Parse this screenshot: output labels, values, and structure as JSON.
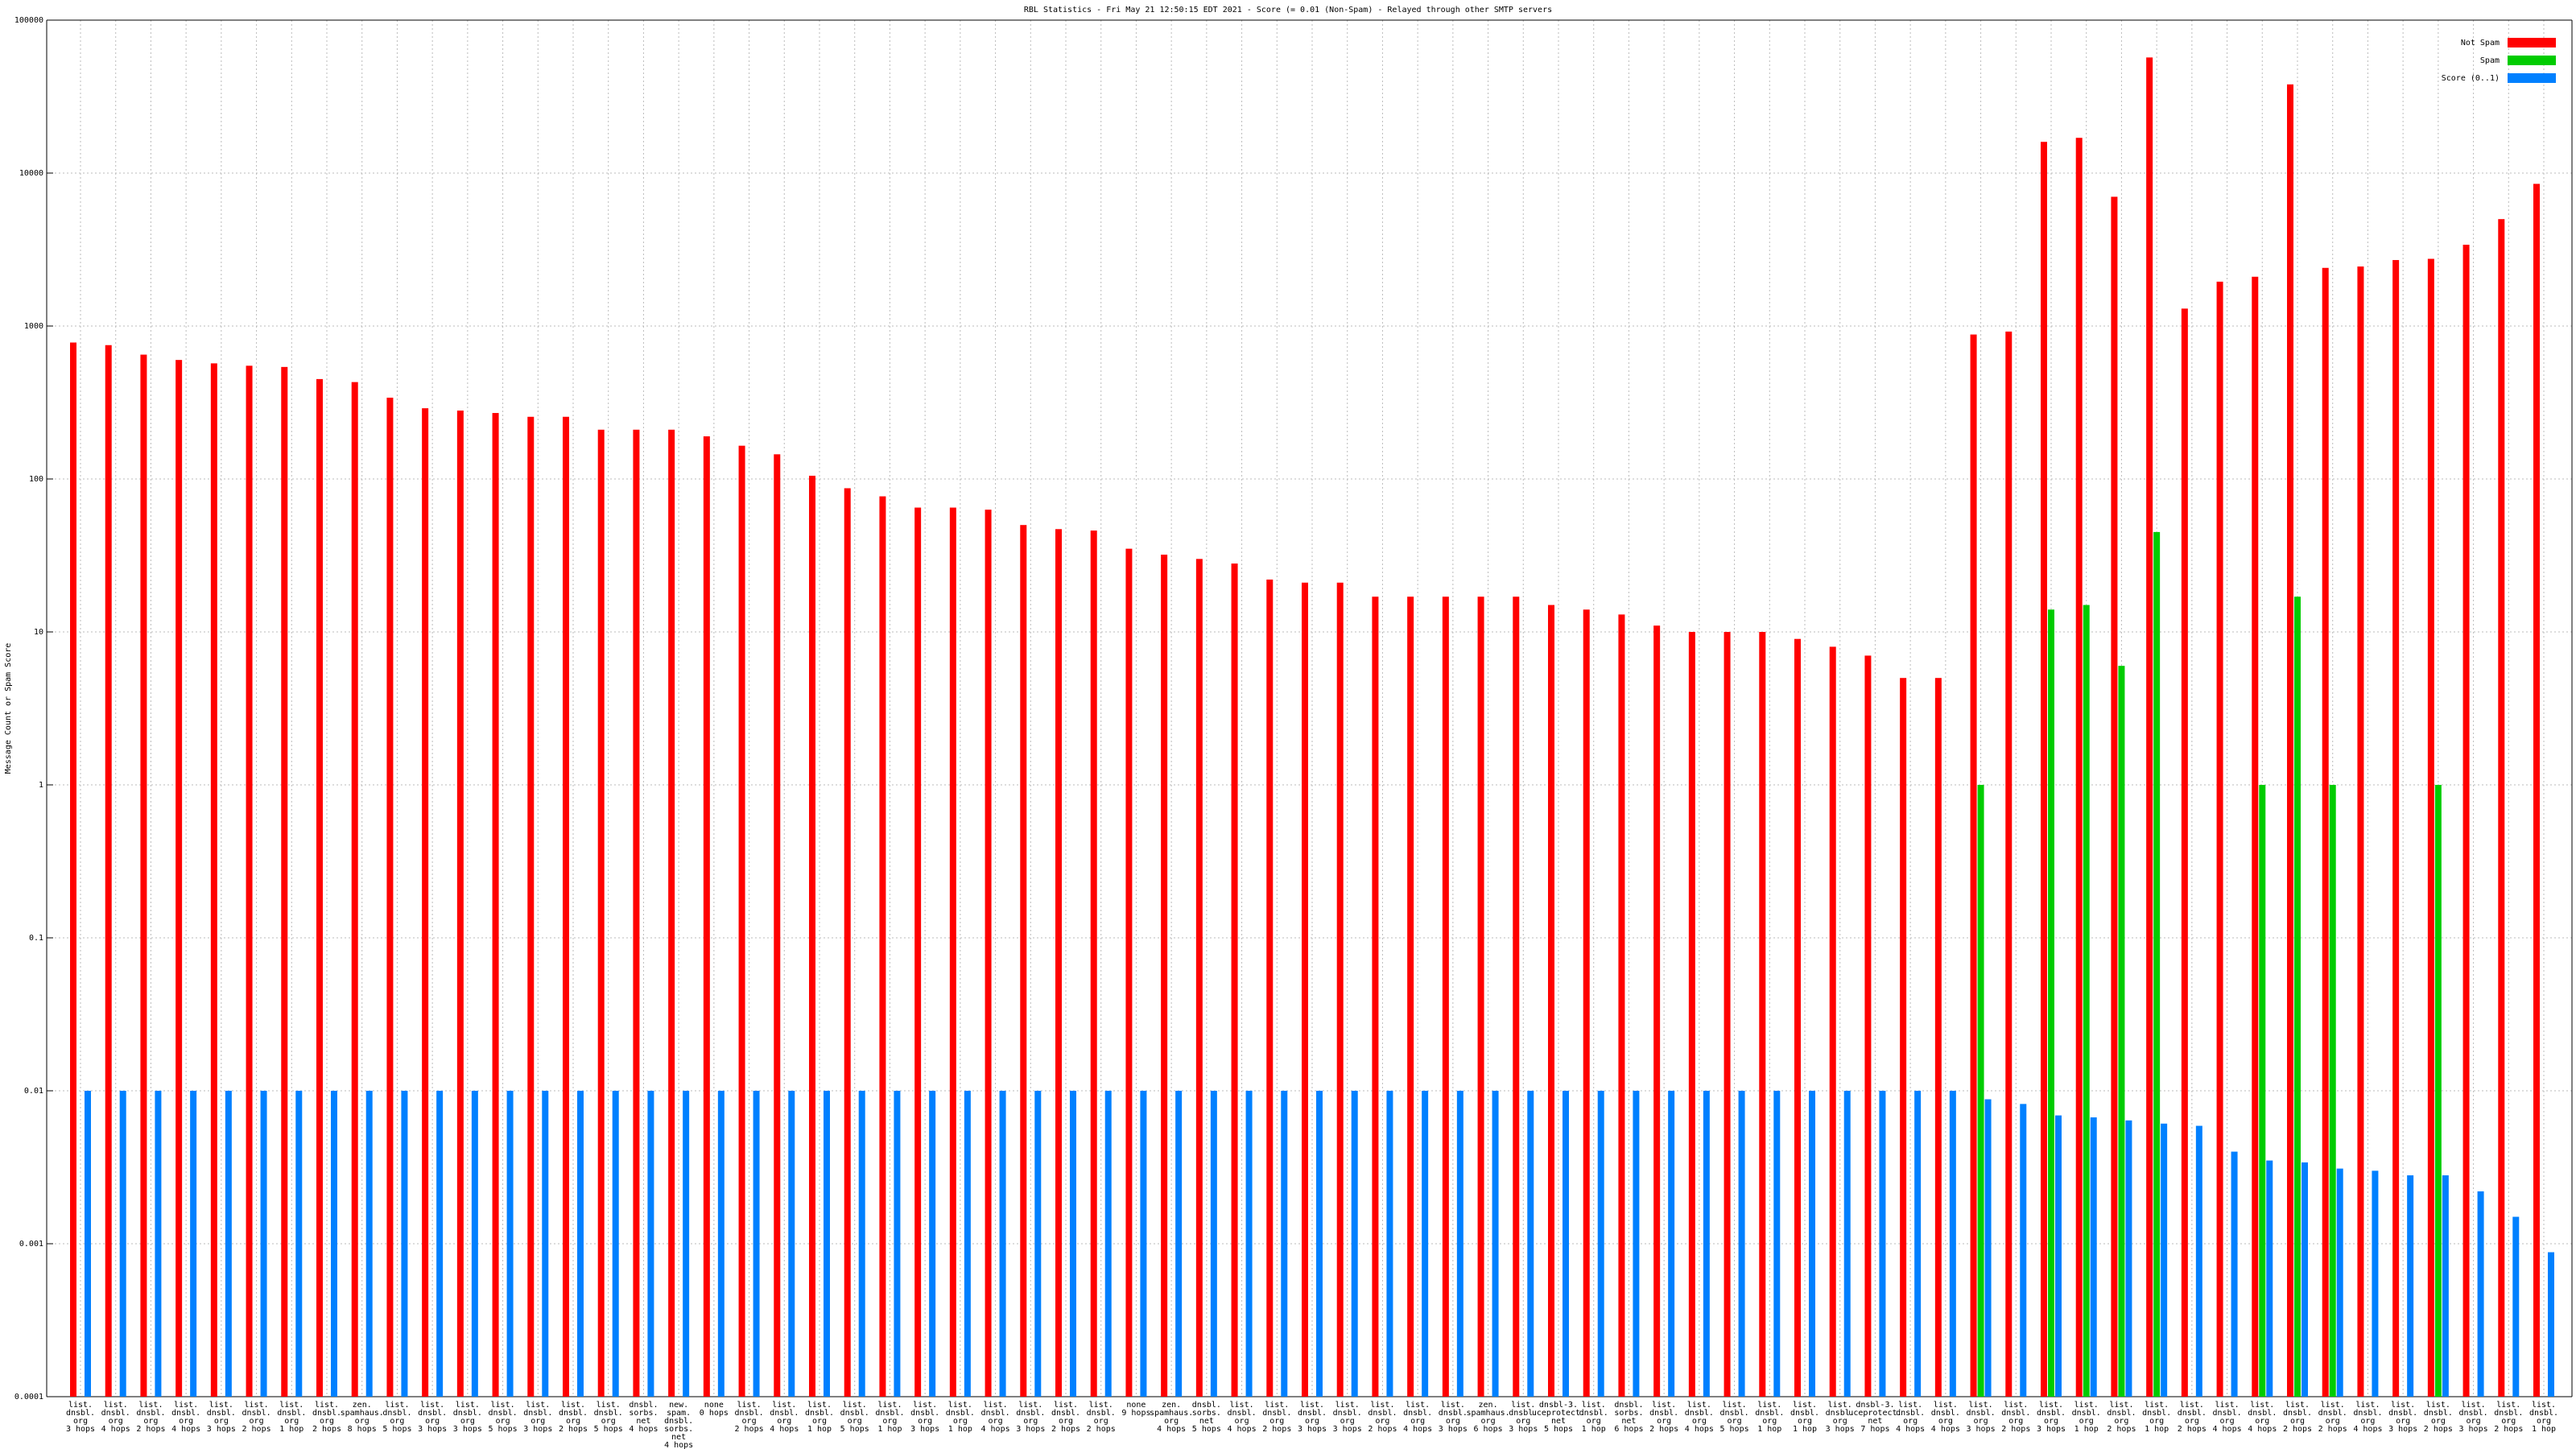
{
  "chart_data": {
    "type": "bar",
    "title": "RBL Statistics - Fri May 21 12:50:15 EDT 2021 - Score (= 0.01 (Non-Spam) - Relayed through other SMTP servers",
    "y_label": "Message Count or Spam Score",
    "log_scale": true,
    "grid": true,
    "legend": "top-right",
    "ylim": [
      0.0001,
      100000
    ],
    "yticks": [
      0.0001,
      0.001,
      0.01,
      0.1,
      1,
      10,
      100,
      1000,
      10000,
      100000
    ],
    "categories": [
      "list.\ndnsbl.\norg\n3 hops",
      "list.\ndnsbl.\norg\n4 hops",
      "list.\ndnsbl.\norg\n2 hops",
      "list.\ndnsbl.\norg\n4 hops",
      "list.\ndnsbl.\norg\n3 hops",
      "list.\ndnsbl.\norg\n2 hops",
      "list.\ndnsbl.\norg\n1 hop",
      "list.\ndnsbl.\norg\n2 hops",
      "zen.\nspamhaus.\norg\n8 hops",
      "list.\ndnsbl.\norg\n5 hops",
      "list.\ndnsbl.\norg\n3 hops",
      "list.\ndnsbl.\norg\n3 hops",
      "list.\ndnsbl.\norg\n5 hops",
      "list.\ndnsbl.\norg\n3 hops",
      "list.\ndnsbl.\norg\n2 hops",
      "list.\ndnsbl.\norg\n5 hops",
      "dnsbl.\nsorbs.\nnet\n4 hops",
      "new.\nspam.\ndnsbl.\nsorbs.\nnet\n4 hops",
      "none\n0 hops",
      "list.\ndnsbl.\norg\n2 hops",
      "list.\ndnsbl.\norg\n4 hops",
      "list.\ndnsbl.\norg\n1 hop",
      "list.\ndnsbl.\norg\n5 hops",
      "list.\ndnsbl.\norg\n1 hop",
      "list.\ndnsbl.\norg\n3 hops",
      "list.\ndnsbl.\norg\n1 hop",
      "list.\ndnsbl.\norg\n4 hops",
      "list.\ndnsbl.\norg\n3 hops",
      "list.\ndnsbl.\norg\n2 hops",
      "list.\ndnsbl.\norg\n2 hops",
      "none\n9 hops",
      "zen.\nspamhaus.\norg\n4 hops",
      "dnsbl.\nsorbs.\nnet\n5 hops",
      "list.\ndnsbl.\norg\n4 hops",
      "list.\ndnsbl.\norg\n2 hops",
      "list.\ndnsbl.\norg\n3 hops",
      "list.\ndnsbl.\norg\n3 hops",
      "list.\ndnsbl.\norg\n2 hops",
      "list.\ndnsbl.\norg\n4 hops",
      "list.\ndnsbl.\norg\n3 hops",
      "zen.\nspamhaus.\norg\n6 hops",
      "list.\ndnsbl.\norg\n3 hops",
      "dnsbl-3.\nuceprotect.\nnet\n5 hops",
      "list.\ndnsbl.\norg\n1 hop",
      "dnsbl.\nsorbs.\nnet\n6 hops",
      "list.\ndnsbl.\norg\n2 hops",
      "list.\ndnsbl.\norg\n4 hops",
      "list.\ndnsbl.\norg\n5 hops",
      "list.\ndnsbl.\norg\n1 hop",
      "list.\ndnsbl.\norg\n1 hop",
      "list.\ndnsbl.\norg\n3 hops",
      "dnsbl-3.\nuceprotect.\nnet\n7 hops",
      "list.\ndnsbl.\norg\n4 hops",
      "list.\ndnsbl.\norg\n4 hops",
      "list.\ndnsbl.\norg\n3 hops",
      "list.\ndnsbl.\norg\n2 hops",
      "list.\ndnsbl.\norg\n3 hops",
      "list.\ndnsbl.\norg\n1 hop",
      "list.\ndnsbl.\norg\n2 hops",
      "list.\ndnsbl.\norg\n1 hop",
      "list.\ndnsbl.\norg\n2 hops",
      "list.\ndnsbl.\norg\n4 hops",
      "list.\ndnsbl.\norg\n4 hops",
      "list.\ndnsbl.\norg\n2 hops",
      "list.\ndnsbl.\norg\n2 hops",
      "list.\ndnsbl.\norg\n4 hops",
      "list.\ndnsbl.\norg\n3 hops",
      "list.\ndnsbl.\norg\n2 hops",
      "list.\ndnsbl.\norg\n3 hops",
      "list.\ndnsbl.\norg\n2 hops",
      "list.\ndnsbl.\norg\n1 hop"
    ],
    "series": [
      {
        "name": "Not Spam",
        "color": "#ff0000",
        "values": [
          780,
          750,
          650,
          600,
          570,
          550,
          540,
          450,
          430,
          340,
          290,
          280,
          270,
          255,
          255,
          210,
          210,
          210,
          190,
          165,
          145,
          105,
          87,
          77,
          65,
          65,
          63,
          50,
          47,
          46,
          35,
          32,
          30,
          28,
          22,
          21,
          21,
          17,
          17,
          17,
          17,
          17,
          15,
          14,
          13,
          11,
          10,
          10,
          10,
          9,
          8,
          7,
          5,
          5,
          880,
          920,
          16000,
          17000,
          7000,
          57000,
          1300,
          1950,
          2100,
          38000,
          2400,
          2450,
          2700,
          2750,
          3400,
          5000,
          8500
        ]
      },
      {
        "name": "Spam",
        "color": "#00cc00",
        "values": [
          null,
          null,
          null,
          null,
          null,
          null,
          null,
          null,
          null,
          null,
          null,
          null,
          null,
          null,
          null,
          null,
          null,
          null,
          null,
          null,
          null,
          null,
          null,
          null,
          null,
          null,
          null,
          null,
          null,
          null,
          null,
          null,
          null,
          null,
          null,
          null,
          null,
          null,
          null,
          null,
          null,
          null,
          null,
          null,
          null,
          null,
          null,
          null,
          null,
          null,
          null,
          null,
          null,
          null,
          1,
          null,
          14,
          15,
          6,
          45,
          null,
          null,
          1,
          17,
          1,
          null,
          null,
          1,
          null,
          null,
          null
        ]
      },
      {
        "name": "Score (0..1)",
        "color": "#0080ff",
        "values": [
          0.01,
          0.01,
          0.01,
          0.01,
          0.01,
          0.01,
          0.01,
          0.01,
          0.01,
          0.01,
          0.01,
          0.01,
          0.01,
          0.01,
          0.01,
          0.01,
          0.01,
          0.01,
          0.01,
          0.01,
          0.01,
          0.01,
          0.01,
          0.01,
          0.01,
          0.01,
          0.01,
          0.01,
          0.01,
          0.01,
          0.01,
          0.01,
          0.01,
          0.01,
          0.01,
          0.01,
          0.01,
          0.01,
          0.01,
          0.01,
          0.01,
          0.01,
          0.01,
          0.01,
          0.01,
          0.01,
          0.01,
          0.01,
          0.01,
          0.01,
          0.01,
          0.01,
          0.01,
          0.01,
          0.0088,
          0.0082,
          0.0069,
          0.0067,
          0.0064,
          0.0061,
          0.0059,
          0.004,
          0.0035,
          0.0034,
          0.0031,
          0.003,
          0.0028,
          0.0028,
          0.0022,
          0.0015,
          0.00088
        ]
      }
    ]
  }
}
